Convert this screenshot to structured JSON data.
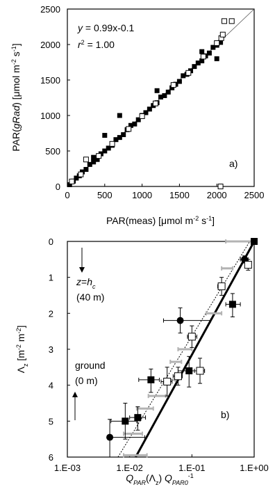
{
  "chart_data": [
    {
      "panel": "a)",
      "type": "scatter",
      "xlabel": "PAR(meas) [μmol m⁻² s⁻¹]",
      "ylabel": "PAR(gRad) [μmol m⁻² s⁻¹]",
      "xlim": [
        0,
        2500
      ],
      "ylim": [
        0,
        2500
      ],
      "xticks": [
        "0",
        "500",
        "1000",
        "1500",
        "2000",
        "2500"
      ],
      "yticks": [
        "0",
        "500",
        "1000",
        "1500",
        "2000",
        "2500"
      ],
      "annotation_eq": "y = 0.99x-0.1",
      "annotation_r2": "r² = 1.00",
      "one_to_one_line": [
        [
          0,
          0
        ],
        [
          2500,
          2500
        ]
      ],
      "series": [
        {
          "marker": "filled-square",
          "points": [
            [
              30,
              25
            ],
            [
              80,
              75
            ],
            [
              120,
              118
            ],
            [
              160,
              150
            ],
            [
              200,
              205
            ],
            [
              250,
              240
            ],
            [
              300,
              310
            ],
            [
              350,
              345
            ],
            [
              400,
              380
            ],
            [
              450,
              460
            ],
            [
              500,
              500
            ],
            [
              550,
              540
            ],
            [
              600,
              580
            ],
            [
              650,
              660
            ],
            [
              700,
              690
            ],
            [
              750,
              730
            ],
            [
              800,
              800
            ],
            [
              850,
              860
            ],
            [
              900,
              880
            ],
            [
              950,
              940
            ],
            [
              1000,
              1000
            ],
            [
              1050,
              1040
            ],
            [
              1100,
              1090
            ],
            [
              1150,
              1140
            ],
            [
              1200,
              1180
            ],
            [
              1250,
              1260
            ],
            [
              1300,
              1280
            ],
            [
              1350,
              1330
            ],
            [
              1400,
              1390
            ],
            [
              1450,
              1440
            ],
            [
              1500,
              1480
            ],
            [
              1550,
              1560
            ],
            [
              1600,
              1580
            ],
            [
              1650,
              1630
            ],
            [
              1700,
              1690
            ],
            [
              1750,
              1740
            ],
            [
              1800,
              1770
            ],
            [
              1850,
              1840
            ],
            [
              1900,
              1880
            ],
            [
              1950,
              1960
            ],
            [
              2000,
              1990
            ],
            [
              2050,
              2030
            ],
            [
              700,
              1000
            ],
            [
              500,
              720
            ],
            [
              350,
              410
            ],
            [
              1200,
              1350
            ],
            [
              1800,
              1900
            ],
            [
              2000,
              1800
            ]
          ]
        },
        {
          "marker": "open-square",
          "points": [
            [
              60,
              70
            ],
            [
              180,
              170
            ],
            [
              250,
              380
            ],
            [
              420,
              430
            ],
            [
              600,
              600
            ],
            [
              820,
              810
            ],
            [
              1000,
              990
            ],
            [
              1180,
              1170
            ],
            [
              1420,
              1430
            ],
            [
              1620,
              1600
            ],
            [
              1820,
              1830
            ],
            [
              2000,
              2020
            ],
            [
              2060,
              2090
            ],
            [
              2080,
              2140
            ],
            [
              2100,
              2330
            ],
            [
              2200,
              2330
            ],
            [
              2050,
              0
            ]
          ]
        }
      ]
    },
    {
      "panel": "b)",
      "type": "scatter",
      "xlabel": "Q_PAR(Λz) Q_PAR0⁻¹",
      "ylabel": "Λz [m⁻² m⁻²]",
      "xscale": "log",
      "xlim": [
        0.001,
        1
      ],
      "ylim": [
        6,
        0
      ],
      "xticks": [
        "1.E-03",
        "1.E-02",
        "1.E-01",
        "1.E+00"
      ],
      "yticks": [
        "0",
        "1",
        "2",
        "3",
        "4",
        "5",
        "6"
      ],
      "annotation_top": "z=h",
      "annotation_top_sub": "c",
      "annotation_top_height": "(40 m)",
      "annotation_bottom": "ground",
      "annotation_bottom_height": "(0 m)",
      "series": [
        {
          "marker": "filled-circle",
          "points": [
            {
              "x": 0.0048,
              "y": 5.45,
              "xerr": [
                0.0048,
                0.0175
              ],
              "yerr": [
                4.95,
                6.0
              ]
            },
            {
              "x": 0.065,
              "y": 2.2,
              "xerr": [
                0.035,
                0.2
              ],
              "yerr": [
                1.85,
                2.55
              ]
            },
            {
              "x": 0.7,
              "y": 0.5,
              "xerr": [
                0.6,
                0.8
              ],
              "yerr": [
                0.4,
                0.6
              ]
            }
          ]
        },
        {
          "marker": "filled-square",
          "points": [
            {
              "x": 0.0085,
              "y": 5.0,
              "xerr": [
                0.005,
                0.013
              ],
              "yerr": [
                4.5,
                5.5
              ]
            },
            {
              "x": 0.0135,
              "y": 4.9,
              "xerr": [
                0.01,
                0.018
              ],
              "yerr": [
                4.6,
                5.25
              ]
            },
            {
              "x": 0.022,
              "y": 3.85,
              "xerr": [
                0.014,
                0.03
              ],
              "yerr": [
                3.55,
                4.2
              ]
            },
            {
              "x": 0.09,
              "y": 3.6,
              "xerr": [
                0.06,
                0.12
              ],
              "yerr": [
                3.2,
                4.05
              ]
            },
            {
              "x": 0.45,
              "y": 1.75,
              "xerr": [
                0.35,
                0.6
              ],
              "yerr": [
                1.45,
                2.1
              ]
            },
            {
              "x": 1.0,
              "y": 0.0
            }
          ]
        },
        {
          "marker": "open-square",
          "points": [
            {
              "x": 0.04,
              "y": 3.9,
              "xerr": [
                0.032,
                0.048
              ],
              "yerr": [
                3.5,
                4.3
              ]
            },
            {
              "x": 0.06,
              "y": 3.75,
              "xerr": [
                0.05,
                0.07
              ],
              "yerr": [
                3.5,
                4.0
              ]
            },
            {
              "x": 0.1,
              "y": 2.65,
              "xerr": [
                0.085,
                0.12
              ],
              "yerr": [
                2.35,
                2.95
              ]
            },
            {
              "x": 0.135,
              "y": 3.6,
              "xerr": [
                0.11,
                0.16
              ],
              "yerr": [
                3.25,
                3.95
              ]
            },
            {
              "x": 0.3,
              "y": 1.25,
              "xerr": [
                0.26,
                0.34
              ],
              "yerr": [
                1.0,
                1.5
              ]
            },
            {
              "x": 0.8,
              "y": 0.65,
              "xerr": [
                0.74,
                0.88
              ],
              "yerr": [
                0.5,
                0.8
              ]
            }
          ]
        },
        {
          "marker": "grey-bar",
          "points": [
            {
              "x": 0.6,
              "y": 0.0,
              "xerr": [
                0.35,
                0.9
              ]
            },
            {
              "x": 0.37,
              "y": 0.75,
              "xerr": [
                0.3,
                0.45
              ]
            },
            {
              "x": 0.23,
              "y": 2.0,
              "xerr": [
                0.17,
                0.3
              ]
            },
            {
              "x": 0.08,
              "y": 3.0,
              "xerr": [
                0.06,
                0.1
              ]
            },
            {
              "x": 0.055,
              "y": 3.35,
              "xerr": [
                0.045,
                0.068
              ]
            },
            {
              "x": 0.045,
              "y": 3.85,
              "xerr": [
                0.036,
                0.054
              ]
            },
            {
              "x": 0.028,
              "y": 4.3,
              "xerr": [
                0.02,
                0.038
              ]
            },
            {
              "x": 0.018,
              "y": 4.65,
              "xerr": [
                0.013,
                0.024
              ]
            },
            {
              "x": 0.011,
              "y": 5.35,
              "xerr": [
                0.008,
                0.016
              ]
            },
            {
              "x": 0.012,
              "y": 5.95,
              "xerr": [
                0.008,
                0.019
              ]
            }
          ]
        }
      ],
      "fit_line": [
        [
          0.0125,
          6
        ],
        [
          1,
          0
        ]
      ],
      "fit_line_dotted": [
        [
          0.0065,
          6
        ],
        [
          0.85,
          0
        ]
      ]
    }
  ]
}
